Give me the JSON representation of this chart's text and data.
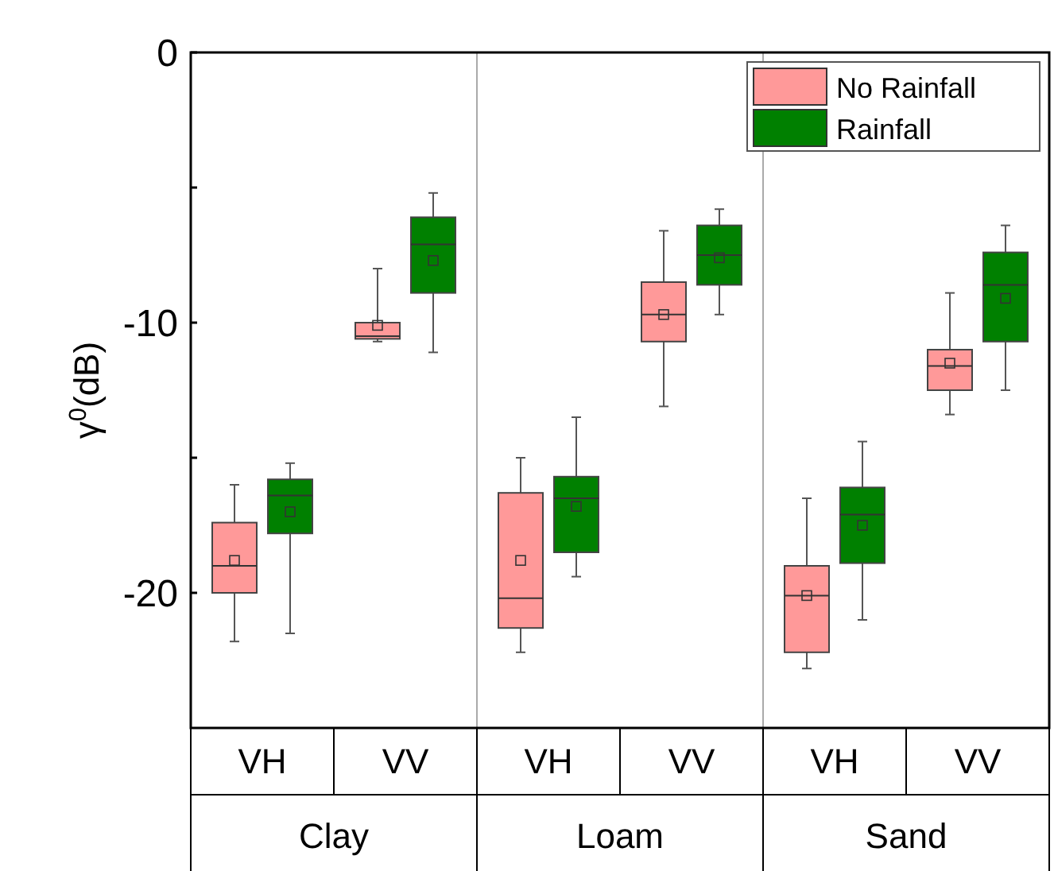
{
  "chart_data": {
    "type": "box",
    "ylabel": "γ$^{0}$(dB)",
    "categories": [
      "VH",
      "VV",
      "VH",
      "VV",
      "VH",
      "VV"
    ],
    "annotations": [
      "Clay",
      "Loam",
      "Sand"
    ],
    "ylim": [
      -25,
      0
    ],
    "yticks": [
      0,
      {
        "value": -5,
        "label": null
      },
      -10,
      {
        "value": -15,
        "label": null
      },
      -20
    ],
    "legend": "top right",
    "grid": false,
    "series": [
      {
        "name": "No Rainfall",
        "color": "#ff9999",
        "boxes": [
          {
            "low": -21.8,
            "q1": -20.0,
            "median": -19.0,
            "q3": -17.4,
            "high": -16.0,
            "mean": -18.8
          },
          {
            "low": -10.7,
            "q1": -10.6,
            "median": -10.5,
            "q3": -10.0,
            "high": -8.0,
            "mean": -10.1
          },
          {
            "low": -22.2,
            "q1": -21.3,
            "median": -20.2,
            "q3": -16.3,
            "high": -15.0,
            "mean": -18.8
          },
          {
            "low": -13.1,
            "q1": -10.7,
            "median": -9.7,
            "q3": -8.5,
            "high": -6.6,
            "mean": -9.7
          },
          {
            "low": -22.8,
            "q1": -22.2,
            "median": -20.1,
            "q3": -19.0,
            "high": -16.5,
            "mean": -20.1
          },
          {
            "low": -13.4,
            "q1": -12.5,
            "median": -11.6,
            "q3": -11.0,
            "high": -8.9,
            "mean": -11.5
          }
        ]
      },
      {
        "name": "Rainfall",
        "color": "#008000",
        "boxes": [
          {
            "low": -21.5,
            "q1": -17.8,
            "median": -16.4,
            "q3": -15.8,
            "high": -15.2,
            "mean": -17.0
          },
          {
            "low": -11.1,
            "q1": -8.9,
            "median": -7.1,
            "q3": -6.1,
            "high": -5.2,
            "mean": -7.7
          },
          {
            "low": -19.4,
            "q1": -18.5,
            "median": -16.5,
            "q3": -15.7,
            "high": -13.5,
            "mean": -16.8
          },
          {
            "low": -9.7,
            "q1": -8.6,
            "median": -7.5,
            "q3": -6.4,
            "high": -5.8,
            "mean": -7.6
          },
          {
            "low": -21.0,
            "q1": -18.9,
            "median": -17.1,
            "q3": -16.1,
            "high": -14.4,
            "mean": -17.5
          },
          {
            "low": -12.5,
            "q1": -10.7,
            "median": -8.6,
            "q3": -7.4,
            "high": -6.4,
            "mean": -9.1
          }
        ]
      }
    ]
  }
}
